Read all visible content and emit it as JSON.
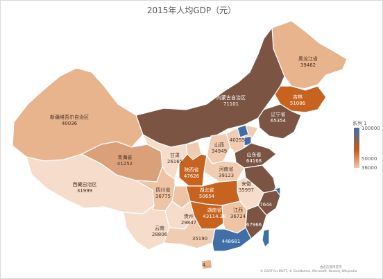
{
  "chart_data": {
    "type": "heatmap",
    "title": "2015年人均GDP（元）",
    "legend": {
      "title": "系列 1",
      "max_label": "100000",
      "mid_label": "50000",
      "min_label": "36000",
      "colors": {
        "high": "#3f6ea8",
        "mid": "#c45a1c",
        "low": "#f2c9a9"
      }
    },
    "regions": [
      {
        "name": "黑龙江省",
        "value": "39462"
      },
      {
        "name": "吉林",
        "value": "51086"
      },
      {
        "name": "辽宁省",
        "value": "65354"
      },
      {
        "name": "内蒙古自治区",
        "value": "71101"
      },
      {
        "name": "新疆维吾尔自治区",
        "value": "40036"
      },
      {
        "name": "青海省",
        "value": "41252"
      },
      {
        "name": "甘肃",
        "value": "26165"
      },
      {
        "name": "山西",
        "value": "34949"
      },
      {
        "name": "",
        "value": "40255"
      },
      {
        "name": "山东省",
        "value": "64168"
      },
      {
        "name": "陕西省",
        "value": "47626"
      },
      {
        "name": "河南省",
        "value": "39123"
      },
      {
        "name": "西藏自治区",
        "value": "31999"
      },
      {
        "name": "四川省",
        "value": "36775"
      },
      {
        "name": "湖北省",
        "value": "50654"
      },
      {
        "name": "安徽",
        "value": "35997"
      },
      {
        "name": "",
        "value": "77644"
      },
      {
        "name": "湖南省",
        "value": "43114.38"
      },
      {
        "name": "江西",
        "value": "36724"
      },
      {
        "name": "",
        "value": "67966"
      },
      {
        "name": "贵州",
        "value": "29847"
      },
      {
        "name": "云南",
        "value": "28806"
      },
      {
        "name": "",
        "value": "35190"
      },
      {
        "name": "",
        "value": "448681"
      },
      {
        "name": "",
        "value": "4..."
      }
    ]
  },
  "attribution": {
    "line1": "由必应提供支持",
    "line2": "© GeoNames, Microsoft, Navteq, Wikipedia"
  },
  "attribution_prefix": "© DSAT for MSFT,"
}
